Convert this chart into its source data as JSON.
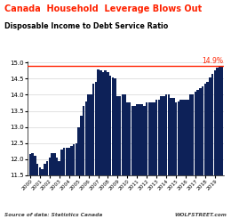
{
  "title": "Canada  Household  Leverage Blows Out",
  "subtitle": "Disposable Income to Debt Service Ratio",
  "title_color": "#ff2200",
  "subtitle_color": "#000000",
  "bar_color": "#0d2158",
  "background_color": "#ffffff",
  "source_left": "Source of data: Statistics Canada",
  "source_right": "WOLFSTREET.com",
  "hline_value": 14.9,
  "hline_color": "#ff2200",
  "hline_label": "14.9%",
  "ylim": [
    11.5,
    15.0
  ],
  "yticks": [
    11.5,
    12.0,
    12.5,
    13.0,
    13.5,
    14.0,
    14.5,
    15.0
  ],
  "x_labels": [
    "2000",
    "2001",
    "2002",
    "2003",
    "2004",
    "2005",
    "2006",
    "2007",
    "2008",
    "2009",
    "2010",
    "2011",
    "2012",
    "2013",
    "2014",
    "2015",
    "2016",
    "2017",
    "2018",
    "2019"
  ],
  "values": [
    12.15,
    12.2,
    12.1,
    11.85,
    11.75,
    11.7,
    11.85,
    11.95,
    12.05,
    12.2,
    12.2,
    12.05,
    11.95,
    12.3,
    12.35,
    12.35,
    12.35,
    12.4,
    12.45,
    12.5,
    13.0,
    13.35,
    13.65,
    13.8,
    14.0,
    14.0,
    14.35,
    14.4,
    14.8,
    14.75,
    14.7,
    14.75,
    14.7,
    14.6,
    14.55,
    14.5,
    13.95,
    13.95,
    14.0,
    14.0,
    13.75,
    13.75,
    13.65,
    13.65,
    13.7,
    13.7,
    13.7,
    13.65,
    13.75,
    13.75,
    13.75,
    13.75,
    13.85,
    13.85,
    13.95,
    13.95,
    14.0,
    14.0,
    13.9,
    13.9,
    13.75,
    13.8,
    13.85,
    13.85,
    13.85,
    13.85,
    14.0,
    14.0,
    14.1,
    14.15,
    14.2,
    14.25,
    14.35,
    14.4,
    14.55,
    14.65,
    14.75,
    14.85,
    14.9,
    14.88
  ]
}
